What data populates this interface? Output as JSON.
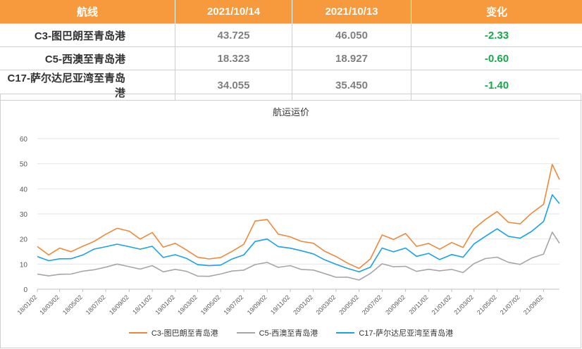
{
  "table": {
    "headers": [
      "航线",
      "2021/10/14",
      "2021/10/13",
      "变化"
    ],
    "rows": [
      {
        "route": "C3-图巴朗至青岛港",
        "d1": "43.725",
        "d2": "46.050",
        "change": "-2.33"
      },
      {
        "route": "C5-西澳至青岛港",
        "d1": "18.323",
        "d2": "18.927",
        "change": "-0.60"
      },
      {
        "route": "C17-萨尔达尼亚湾至青岛港",
        "d1": "34.055",
        "d2": "35.450",
        "change": "-1.40"
      }
    ]
  },
  "chart_data": {
    "type": "line",
    "title": "航运运价",
    "ylim": [
      0,
      60
    ],
    "yticks": [
      0,
      10,
      20,
      30,
      40,
      50,
      60
    ],
    "xlim": [
      "2018/01/02",
      "2021/10/14"
    ],
    "xticks": [
      "18/01/02",
      "18/03/02",
      "18/05/02",
      "18/07/02",
      "18/09/02",
      "18/11/02",
      "19/01/02",
      "19/03/02",
      "19/05/02",
      "19/07/02",
      "19/09/02",
      "19/11/02",
      "20/01/02",
      "20/03/02",
      "20/05/02",
      "20/07/02",
      "20/09/02",
      "20/11/02",
      "21/01/02",
      "21/03/02",
      "21/05/02",
      "21/07/02",
      "21/09/02"
    ],
    "grid": "horizontal",
    "legend_position": "bottom",
    "x": [
      "2018/01/02",
      "2018/02/01",
      "2018/03/02",
      "2018/04/01",
      "2018/05/02",
      "2018/06/01",
      "2018/07/02",
      "2018/08/01",
      "2018/09/02",
      "2018/10/01",
      "2018/11/02",
      "2018/12/01",
      "2019/01/02",
      "2019/02/01",
      "2019/03/02",
      "2019/04/01",
      "2019/05/02",
      "2019/06/01",
      "2019/07/02",
      "2019/08/01",
      "2019/09/02",
      "2019/10/01",
      "2019/11/02",
      "2019/12/01",
      "2020/01/02",
      "2020/02/01",
      "2020/03/02",
      "2020/04/01",
      "2020/05/02",
      "2020/06/01",
      "2020/07/02",
      "2020/08/01",
      "2020/09/02",
      "2020/10/01",
      "2020/11/02",
      "2020/12/01",
      "2021/01/02",
      "2021/02/01",
      "2021/03/02",
      "2021/04/01",
      "2021/05/02",
      "2021/06/01",
      "2021/07/02",
      "2021/08/01",
      "2021/09/02",
      "2021/09/25",
      "2021/10/14"
    ],
    "series": [
      {
        "name": "C3-图巴朗至青岛港",
        "color": "#f0883a",
        "values": [
          17,
          14,
          16,
          15,
          17,
          19,
          22,
          24,
          23,
          20,
          23,
          17,
          18,
          16,
          13,
          12,
          13,
          15,
          18,
          27,
          28,
          22,
          21,
          19,
          18,
          15,
          13,
          10,
          8,
          12,
          22,
          20,
          22,
          17,
          18,
          16,
          19,
          17,
          24,
          28,
          31,
          27,
          26,
          30,
          34,
          50,
          43.7
        ]
      },
      {
        "name": "C5-西澳至青岛港",
        "color": "#a6a6a6",
        "values": [
          6,
          5.5,
          6,
          6,
          7,
          8,
          9,
          10,
          9,
          8,
          9,
          7,
          8,
          7,
          5.5,
          5,
          6,
          7,
          8,
          10,
          11,
          9,
          9,
          8,
          8,
          6,
          5,
          4.5,
          4,
          6,
          10,
          9,
          9,
          7,
          8,
          7,
          8,
          7,
          10,
          12,
          13,
          11,
          10,
          12,
          14,
          23,
          18.3
        ]
      },
      {
        "name": "C17-萨尔达尼亚湾至青岛港",
        "color": "#1aa2e6",
        "values": [
          13,
          11,
          12,
          12,
          14,
          16,
          17,
          18,
          17,
          16,
          17,
          13,
          14,
          12,
          10,
          9.5,
          10,
          12,
          14,
          19,
          20,
          17,
          16,
          15,
          14,
          12,
          10,
          8,
          7,
          9,
          16,
          15,
          16,
          13,
          14,
          12,
          14,
          13,
          18,
          21,
          24,
          21,
          20,
          23,
          27,
          38,
          34.1
        ]
      }
    ]
  }
}
